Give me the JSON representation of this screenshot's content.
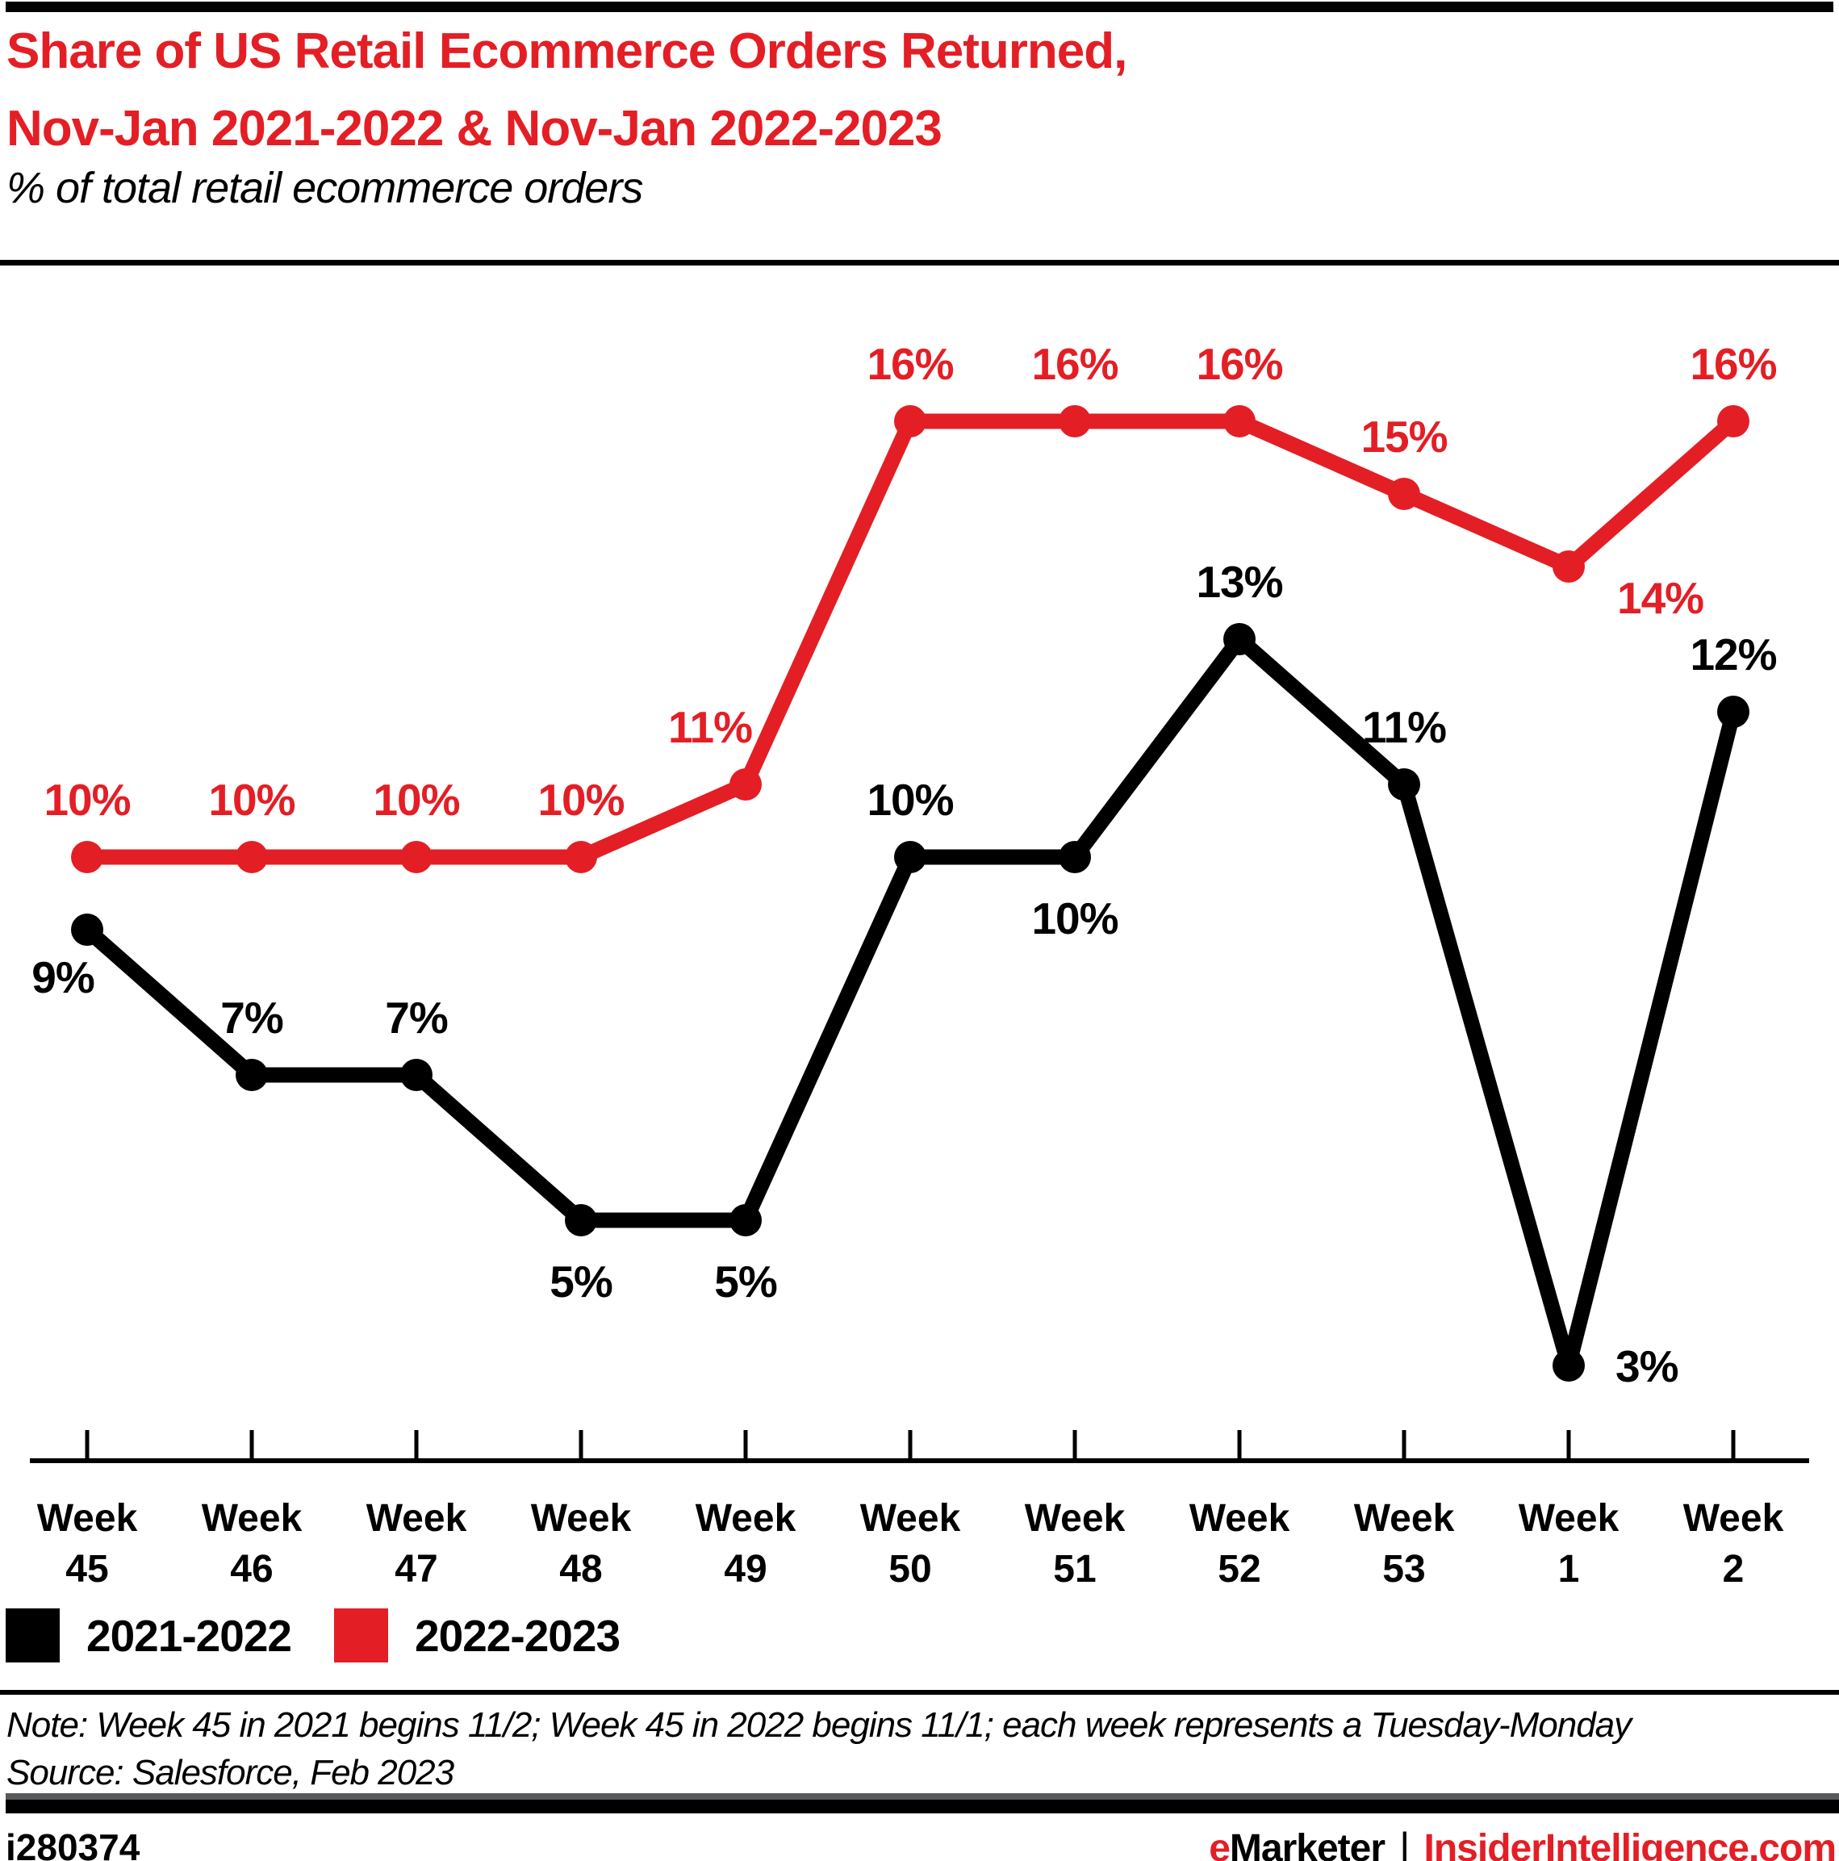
{
  "header": {
    "title_line1": "Share of US Retail Ecommerce Orders Returned,",
    "title_line2": "Nov-Jan 2021-2022 & Nov-Jan 2022-2023",
    "subtitle": "% of total retail ecommerce orders"
  },
  "chart_data": {
    "type": "line",
    "title": "Share of US Retail Ecommerce Orders Returned, Nov-Jan 2021-2022 & Nov-Jan 2022-2023",
    "ylabel": "% of total retail ecommerce orders",
    "categories": [
      "Week 45",
      "Week 46",
      "Week 47",
      "Week 48",
      "Week 49",
      "Week 50",
      "Week 51",
      "Week 52",
      "Week 53",
      "Week 1",
      "Week 2"
    ],
    "x_tick_word": "Week",
    "x_tick_numbers": [
      "45",
      "46",
      "47",
      "48",
      "49",
      "50",
      "51",
      "52",
      "53",
      "1",
      "2"
    ],
    "ylim": [
      1.6,
      18
    ],
    "grid": false,
    "legend_position": "bottom-left",
    "series": [
      {
        "name": "2021-2022",
        "color": "#000000",
        "values": [
          9,
          7,
          7,
          5,
          5,
          10,
          10,
          13,
          11,
          3,
          12
        ],
        "labels": [
          "9%",
          "7%",
          "7%",
          "5%",
          "5%",
          "10%",
          "10%",
          "13%",
          "11%",
          "3%",
          "12%"
        ],
        "label_pos": [
          "below-left",
          "above",
          "above",
          "below",
          "below",
          "above",
          "below",
          "above",
          "above",
          "right",
          "above"
        ]
      },
      {
        "name": "2022-2023",
        "color": "#e41e25",
        "values": [
          10,
          10,
          10,
          10,
          11,
          16,
          16,
          16,
          15,
          14,
          16
        ],
        "labels": [
          "10%",
          "10%",
          "10%",
          "10%",
          "11%",
          "16%",
          "16%",
          "16%",
          "15%",
          "14%",
          "16%"
        ],
        "label_pos": [
          "above",
          "above",
          "above",
          "above",
          "above-left",
          "above",
          "above",
          "above",
          "above",
          "right-below",
          "above"
        ]
      }
    ]
  },
  "legend": {
    "items": [
      {
        "label": "2021-2022",
        "color": "#000000"
      },
      {
        "label": "2022-2023",
        "color": "#e41e25"
      }
    ]
  },
  "note": "Note: Week 45 in 2021 begins 11/2; Week 45 in 2022 begins 11/1; each week represents a Tuesday-Monday",
  "source": "Source: Salesforce, Feb 2023",
  "footer": {
    "chart_id": "i280374",
    "brand_e": "e",
    "brand_rest": "Marketer",
    "separator": "|",
    "site": "InsiderIntelligence.com"
  },
  "colors": {
    "accent_red": "#e41e25",
    "black": "#000000",
    "gray_bar": "#58595b"
  }
}
